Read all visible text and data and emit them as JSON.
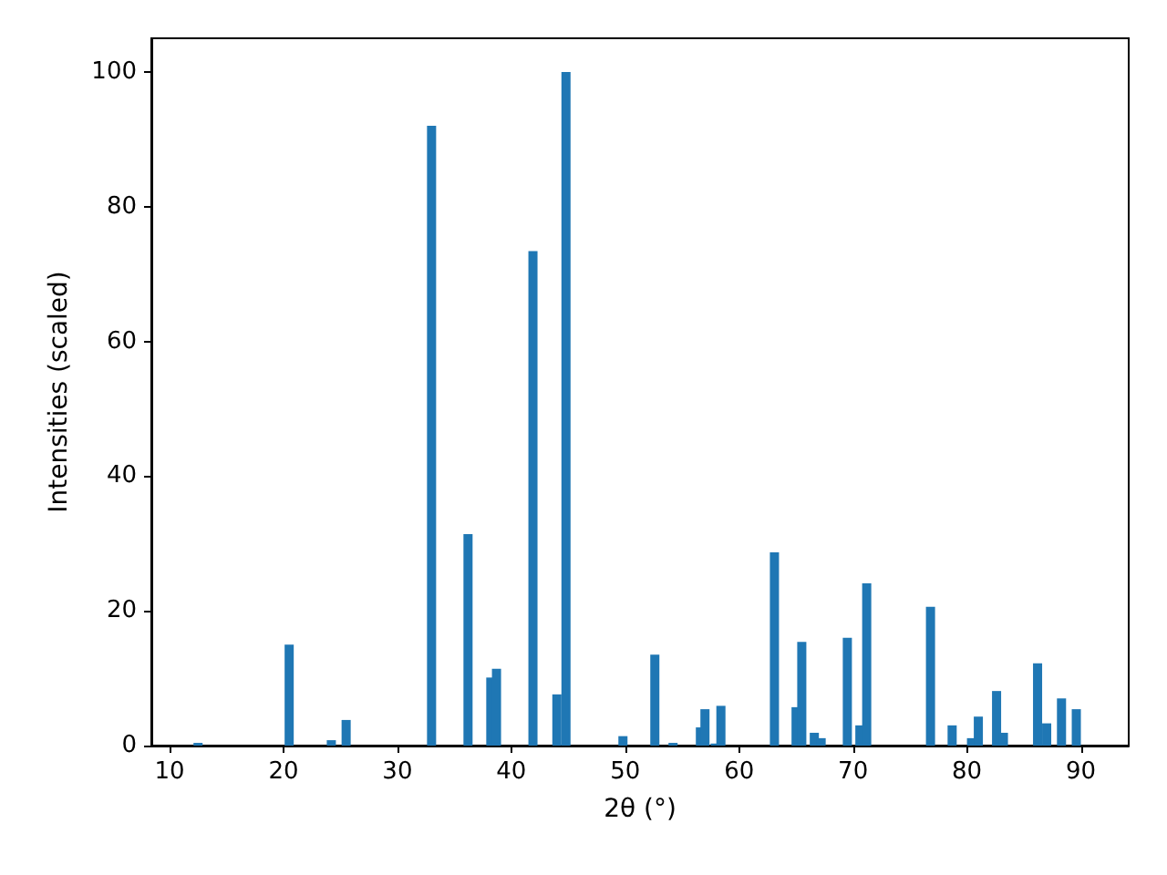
{
  "chart_data": {
    "type": "bar",
    "xlabel": "2θ (°)",
    "ylabel": "Intensities (scaled)",
    "x": [
      12.5,
      20.5,
      24.2,
      25.5,
      33.0,
      36.2,
      38.2,
      38.7,
      41.9,
      44.0,
      44.8,
      49.8,
      52.6,
      54.2,
      56.6,
      57.0,
      57.9,
      58.4,
      63.1,
      65.0,
      65.5,
      66.6,
      67.2,
      69.5,
      70.6,
      71.2,
      76.8,
      78.7,
      80.4,
      81.0,
      82.6,
      83.2,
      86.2,
      87.0,
      88.3,
      89.6
    ],
    "values": [
      0.4,
      15,
      0.8,
      3.8,
      92,
      31.4,
      10.1,
      11.4,
      73.4,
      7.6,
      100,
      1.4,
      13.5,
      0.4,
      2.7,
      5.4,
      0.3,
      5.9,
      28.7,
      5.7,
      15.4,
      1.9,
      1.1,
      16.0,
      3.0,
      24.1,
      20.6,
      3.0,
      1.1,
      4.3,
      8.1,
      1.9,
      12.2,
      3.3,
      7.0,
      5.4
    ],
    "color": "#1f77b4",
    "xlim": [
      8.4,
      94.2
    ],
    "xticks": [
      10,
      20,
      30,
      40,
      50,
      60,
      70,
      80,
      90
    ],
    "ylim": [
      0,
      105
    ],
    "yticks": [
      0,
      20,
      40,
      60,
      80,
      100
    ],
    "grid": false
  }
}
